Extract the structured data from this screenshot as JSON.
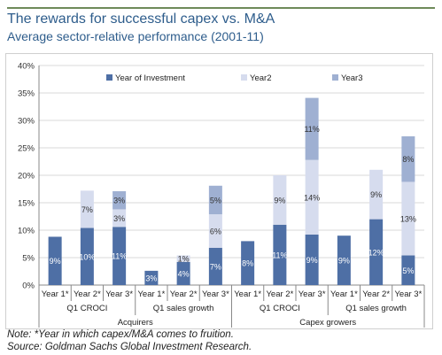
{
  "title": "The rewards for successful capex vs. M&A",
  "subtitle": "Average sector-relative performance (2001-11)",
  "note": "Note: *Year in which capex/M&A comes to fruition.",
  "source": "Source:  Goldman Sachs Global Investment Research.",
  "chart_data": {
    "type": "bar",
    "stacked": true,
    "ylim": [
      0,
      40
    ],
    "yticks": [
      "0%",
      "5%",
      "10%",
      "15%",
      "20%",
      "25%",
      "30%",
      "35%",
      "40%"
    ],
    "grid": true,
    "legend_position": "top",
    "categories": [
      "Year 1*",
      "Year 2*",
      "Year 3*",
      "Year 1*",
      "Year 2*",
      "Year 3*",
      "Year 1*",
      "Year 2*",
      "Year 3*",
      "Year 1*",
      "Year 2*",
      "Year 3*"
    ],
    "subgroups": [
      "Q1 CROCI",
      "Q1 sales growth",
      "Q1 CROCI",
      "Q1 sales growth"
    ],
    "groups": [
      "Acquirers",
      "Capex growers"
    ],
    "series": [
      {
        "name": "Year of Investment",
        "color": "#4e6fa5",
        "values": [
          8.8,
          10.4,
          10.6,
          2.6,
          4.2,
          6.8,
          8.0,
          11.0,
          9.2,
          9.0,
          12.0,
          5.4
        ],
        "labels": [
          "9%",
          "10%",
          "11%",
          "3%",
          "4%",
          "7%",
          "8%",
          "11%",
          "9%",
          "9%",
          "12%",
          "5%"
        ]
      },
      {
        "name": "Year2",
        "color": "#d6dcee",
        "values": [
          null,
          6.8,
          3.2,
          null,
          1.2,
          6.1,
          null,
          9.0,
          13.6,
          null,
          9.0,
          13.4
        ],
        "labels": [
          "",
          "7%",
          "3%",
          "",
          "1%",
          "6%",
          "",
          "9%",
          "14%",
          "",
          "9%",
          "13%"
        ]
      },
      {
        "name": "Year3",
        "color": "#9fb0d2",
        "values": [
          null,
          null,
          3.3,
          null,
          null,
          5.2,
          null,
          null,
          11.3,
          null,
          null,
          8.3
        ],
        "labels": [
          "",
          "",
          "3%",
          "",
          "",
          "5%",
          "",
          "",
          "11%",
          "",
          "",
          "8%"
        ]
      }
    ]
  }
}
